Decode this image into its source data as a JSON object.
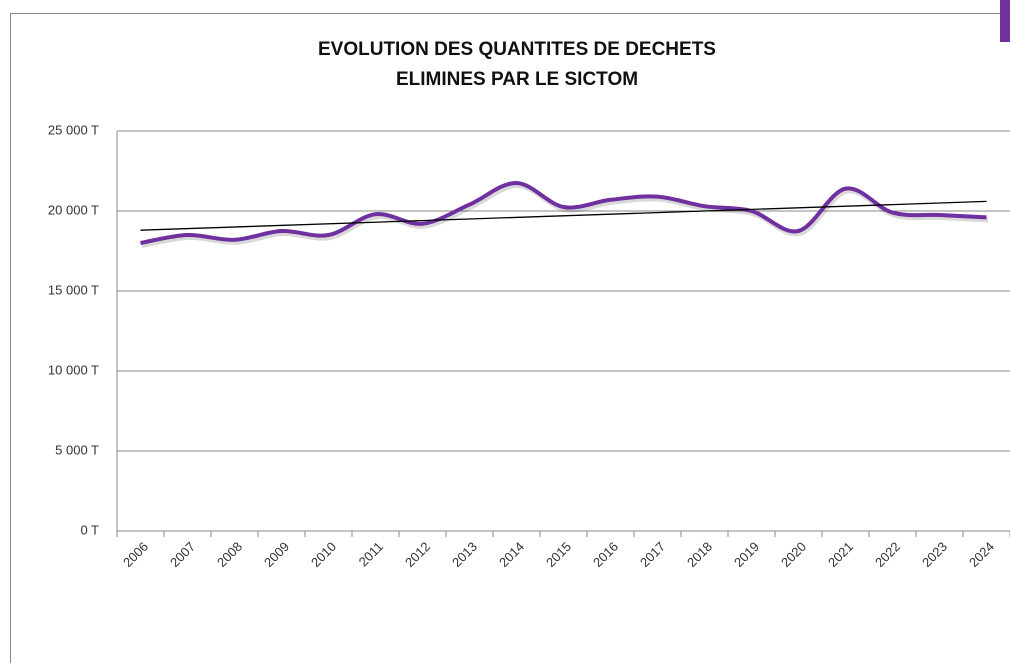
{
  "chart_data": {
    "type": "line",
    "title": [
      "EVOLUTION DES QUANTITES DE DECHETS",
      "ELIMINES PAR LE SICTOM"
    ],
    "categories": [
      "2006",
      "2007",
      "2008",
      "2009",
      "2010",
      "2011",
      "2012",
      "2013",
      "2014",
      "2015",
      "2016",
      "2017",
      "2018",
      "2019",
      "2020",
      "2021",
      "2022",
      "2023",
      "2024"
    ],
    "series": [
      {
        "color": "#7030a0",
        "values": [
          18000,
          18500,
          18200,
          18750,
          18500,
          19800,
          19200,
          20400,
          21750,
          20250,
          20700,
          20900,
          20300,
          20000,
          18750,
          21400,
          19900,
          19750,
          19600
        ]
      }
    ],
    "trendline": {
      "color": "#000000",
      "values": [
        18800,
        20600
      ]
    },
    "ylim": [
      0,
      25000
    ],
    "yticks": [
      {
        "value": 0,
        "label": "0 T"
      },
      {
        "value": 5000,
        "label": "5 000 T"
      },
      {
        "value": 10000,
        "label": "10 000 T"
      },
      {
        "value": 15000,
        "label": "15 000 T"
      },
      {
        "value": 20000,
        "label": "20 000 T"
      },
      {
        "value": 25000,
        "label": "25 000 T"
      }
    ],
    "grid": true
  }
}
